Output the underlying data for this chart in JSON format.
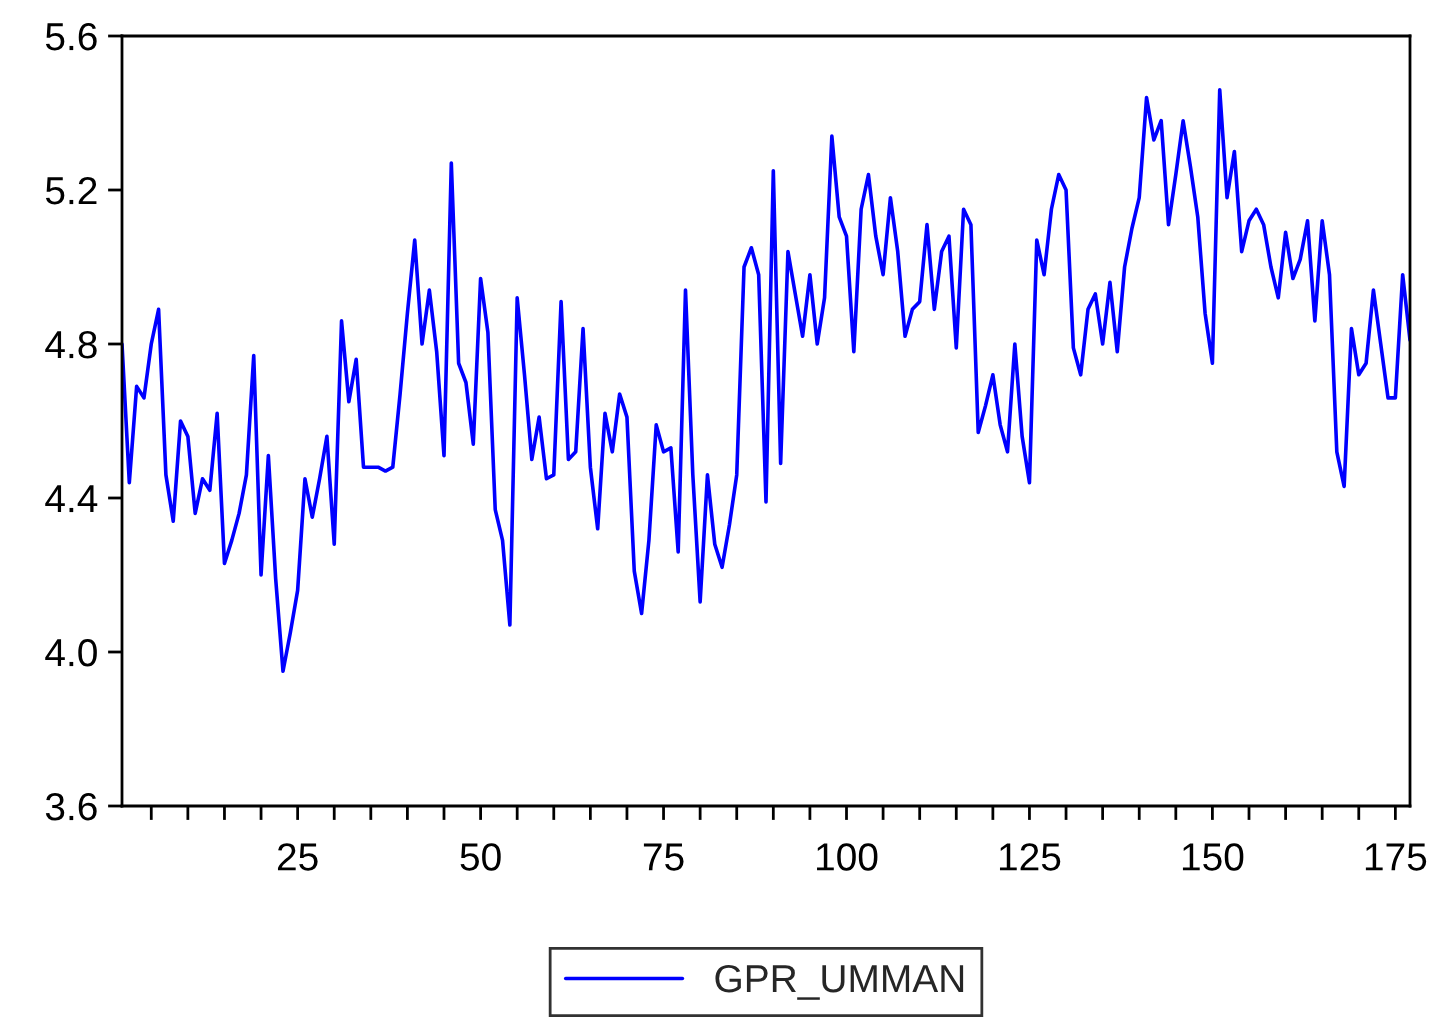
{
  "chart_data": {
    "type": "line",
    "x": [
      1,
      2,
      3,
      4,
      5,
      6,
      7,
      8,
      9,
      10,
      11,
      12,
      13,
      14,
      15,
      16,
      17,
      18,
      19,
      20,
      21,
      22,
      23,
      24,
      25,
      26,
      27,
      28,
      29,
      30,
      31,
      32,
      33,
      34,
      35,
      36,
      37,
      38,
      39,
      40,
      41,
      42,
      43,
      44,
      45,
      46,
      47,
      48,
      49,
      50,
      51,
      52,
      53,
      54,
      55,
      56,
      57,
      58,
      59,
      60,
      61,
      62,
      63,
      64,
      65,
      66,
      67,
      68,
      69,
      70,
      71,
      72,
      73,
      74,
      75,
      76,
      77,
      78,
      79,
      80,
      81,
      82,
      83,
      84,
      85,
      86,
      87,
      88,
      89,
      90,
      91,
      92,
      93,
      94,
      95,
      96,
      97,
      98,
      99,
      100,
      101,
      102,
      103,
      104,
      105,
      106,
      107,
      108,
      109,
      110,
      111,
      112,
      113,
      114,
      115,
      116,
      117,
      118,
      119,
      120,
      121,
      122,
      123,
      124,
      125,
      126,
      127,
      128,
      129,
      130,
      131,
      132,
      133,
      134,
      135,
      136,
      137,
      138,
      139,
      140,
      141,
      142,
      143,
      144,
      145,
      146,
      147,
      148,
      149,
      150,
      151,
      152,
      153,
      154,
      155,
      156,
      157,
      158,
      159,
      160,
      161,
      162,
      163,
      164,
      165,
      166,
      167,
      168,
      169,
      170,
      171,
      172,
      173,
      174,
      175,
      176,
      177
    ],
    "series": [
      {
        "name": "GPR_UMMAN",
        "color": "#0000ff",
        "values": [
          4.8,
          4.44,
          4.69,
          4.66,
          4.8,
          4.89,
          4.46,
          4.34,
          4.6,
          4.56,
          4.36,
          4.45,
          4.42,
          4.62,
          4.23,
          4.29,
          4.36,
          4.46,
          4.77,
          4.2,
          4.51,
          4.19,
          3.95,
          4.05,
          4.16,
          4.45,
          4.35,
          4.45,
          4.56,
          4.28,
          4.86,
          4.65,
          4.76,
          4.48,
          4.48,
          4.48,
          4.47,
          4.48,
          4.67,
          4.88,
          5.07,
          4.8,
          4.94,
          4.78,
          4.51,
          5.27,
          4.75,
          4.7,
          4.54,
          4.97,
          4.83,
          4.37,
          4.29,
          4.07,
          4.92,
          4.72,
          4.5,
          4.61,
          4.45,
          4.46,
          4.91,
          4.5,
          4.52,
          4.84,
          4.48,
          4.32,
          4.62,
          4.52,
          4.67,
          4.61,
          4.21,
          4.1,
          4.29,
          4.59,
          4.52,
          4.53,
          4.26,
          4.94,
          4.46,
          4.13,
          4.46,
          4.28,
          4.22,
          4.33,
          4.46,
          5.0,
          5.05,
          4.98,
          4.39,
          5.25,
          4.49,
          5.04,
          4.93,
          4.82,
          4.98,
          4.8,
          4.92,
          5.34,
          5.13,
          5.08,
          4.78,
          5.15,
          5.24,
          5.08,
          4.98,
          5.18,
          5.04,
          4.82,
          4.89,
          4.91,
          5.11,
          4.89,
          5.04,
          5.08,
          4.79,
          5.15,
          5.11,
          4.57,
          4.64,
          4.72,
          4.59,
          4.52,
          4.8,
          4.56,
          4.44,
          5.07,
          4.98,
          5.15,
          5.24,
          5.2,
          4.79,
          4.72,
          4.89,
          4.93,
          4.8,
          4.96,
          4.78,
          5.0,
          5.1,
          5.18,
          5.44,
          5.33,
          5.38,
          5.11,
          5.24,
          5.38,
          5.26,
          5.13,
          4.88,
          4.75,
          5.46,
          5.18,
          5.3,
          5.04,
          5.12,
          5.15,
          5.11,
          5.0,
          4.92,
          5.09,
          4.97,
          5.02,
          5.12,
          4.86,
          5.12,
          4.98,
          4.52,
          4.43,
          4.84,
          4.72,
          4.75,
          4.94,
          4.8,
          4.66,
          4.66,
          4.98,
          4.81
        ]
      }
    ],
    "xlim": [
      1,
      177
    ],
    "xticks": [
      {
        "value": 5,
        "label": null
      },
      {
        "value": 10,
        "label": null
      },
      {
        "value": 15,
        "label": null
      },
      {
        "value": 20,
        "label": null
      },
      25,
      {
        "value": 30,
        "label": null
      },
      {
        "value": 35,
        "label": null
      },
      {
        "value": 40,
        "label": null
      },
      {
        "value": 45,
        "label": null
      },
      50,
      {
        "value": 55,
        "label": null
      },
      {
        "value": 60,
        "label": null
      },
      {
        "value": 65,
        "label": null
      },
      {
        "value": 70,
        "label": null
      },
      75,
      {
        "value": 80,
        "label": null
      },
      {
        "value": 85,
        "label": null
      },
      {
        "value": 90,
        "label": null
      },
      {
        "value": 95,
        "label": null
      },
      100,
      {
        "value": 105,
        "label": null
      },
      {
        "value": 110,
        "label": null
      },
      {
        "value": 115,
        "label": null
      },
      {
        "value": 120,
        "label": null
      },
      125,
      {
        "value": 130,
        "label": null
      },
      {
        "value": 135,
        "label": null
      },
      {
        "value": 140,
        "label": null
      },
      {
        "value": 145,
        "label": null
      },
      150,
      {
        "value": 155,
        "label": null
      },
      {
        "value": 160,
        "label": null
      },
      {
        "value": 165,
        "label": null
      },
      {
        "value": 170,
        "label": null
      },
      175
    ],
    "ylim": [
      3.6,
      5.6
    ],
    "yticks": [
      {
        "value": 3.6,
        "label": "3.6"
      },
      {
        "value": 4.0,
        "label": "4.0"
      },
      {
        "value": 4.4,
        "label": "4.4"
      },
      {
        "value": 4.8,
        "label": "4.8"
      },
      {
        "value": 5.2,
        "label": "5.2"
      },
      {
        "value": 5.6,
        "label": "5.6"
      }
    ],
    "grid": false,
    "legend": "bottom",
    "marker": "none",
    "line_style": "solid"
  }
}
